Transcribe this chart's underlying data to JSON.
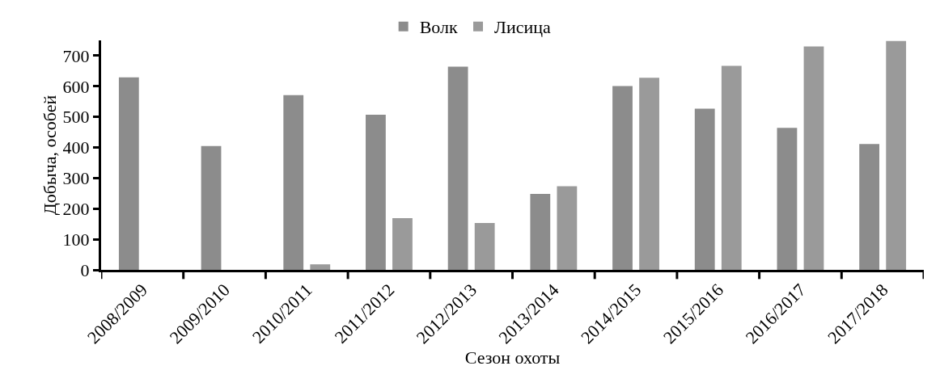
{
  "chart_data": {
    "type": "bar",
    "xlabel": "Сезон охоты",
    "ylabel": "Добыча, особей",
    "categories": [
      "2008/2009",
      "2009/2010",
      "2010/2011",
      "2011/2012",
      "2012/2013",
      "2013/2014",
      "2014/2015",
      "2015/2016",
      "2016/2017",
      "2017/2018"
    ],
    "series": [
      {
        "name": "Волк",
        "color": "#8c8c8c",
        "values": [
          629,
          405,
          571,
          507,
          664,
          248,
          601,
          527,
          464,
          411
        ]
      },
      {
        "name": "Лисица",
        "color": "#9a9a9a",
        "values": [
          null,
          null,
          18,
          169,
          153,
          273,
          628,
          667,
          730,
          748
        ]
      }
    ],
    "ylim": [
      0,
      750
    ],
    "yticks": [
      0,
      100,
      200,
      300,
      400,
      500,
      600,
      700
    ],
    "grid": false,
    "legend": "top"
  }
}
